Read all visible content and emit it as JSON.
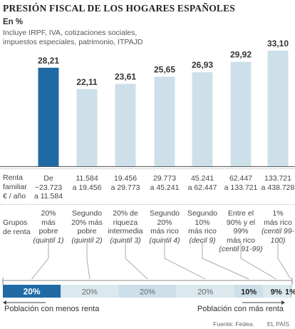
{
  "title": "PRESIÓN FISCAL DE LOS HOGARES ESPAÑOLES",
  "units": "En %",
  "subtitle": "Incluye IRPF, IVA, cotizaciones sociales, impuestos especiales, patrimonio, ITPAJD",
  "colors": {
    "highlight": "#1f6aa5",
    "bar": "#cde0ea",
    "axis": "#555555",
    "text": "#333333"
  },
  "chart_data": {
    "type": "bar",
    "categories": [
      "quintil 1",
      "quintil 2",
      "quintil 3",
      "quintil 4",
      "decil 9",
      "centil 91-99",
      "centil 99-100"
    ],
    "values": [
      28.21,
      22.11,
      23.61,
      25.65,
      26.93,
      29.92,
      33.1
    ],
    "value_labels": [
      "28,21",
      "22,11",
      "23,61",
      "25,65",
      "26,93",
      "29,92",
      "33,10"
    ],
    "ylabel": "En %",
    "ylim": [
      0,
      33.1
    ],
    "grid": false,
    "highlight_index": 0
  },
  "income_row_label": [
    "Renta",
    "familiar",
    "€ / año"
  ],
  "income": [
    [
      "De",
      "−23.723",
      "a 11.584"
    ],
    [
      "11.584",
      "a 19.456"
    ],
    [
      "19.456",
      "a 29.773"
    ],
    [
      "29.773",
      "a 45.241"
    ],
    [
      "45.241",
      "a 62.447"
    ],
    [
      "62.447",
      "a 133.721"
    ],
    [
      "133.721",
      "a 438.728"
    ]
  ],
  "groups_row_label": [
    "Grupos",
    "de renta"
  ],
  "groups": [
    {
      "lines": [
        "20%",
        "más",
        "pobre"
      ],
      "tag": "(quintil 1)"
    },
    {
      "lines": [
        "Segundo",
        "20% más",
        "pobre"
      ],
      "tag": "(quintil 2)"
    },
    {
      "lines": [
        "20% de",
        "riqueza",
        "intermedia"
      ],
      "tag": "(quintil 3)"
    },
    {
      "lines": [
        "Segundo",
        "20%",
        "más rico"
      ],
      "tag": "(quintil 4)"
    },
    {
      "lines": [
        "Segundo",
        "10%",
        "más rico"
      ],
      "tag": "(decil 9)"
    },
    {
      "lines": [
        "Entre el",
        "90% y el 99%",
        "más rico"
      ],
      "tag": "(centil 91-99)"
    },
    {
      "lines": [
        "1%",
        "más rico"
      ],
      "tag": "(centil 99-100)"
    }
  ],
  "distribution": {
    "shares": [
      20,
      20,
      20,
      20,
      10,
      9,
      1
    ],
    "labels": [
      "20%",
      "20%",
      "20%",
      "20%",
      "10%",
      "9%",
      "1%"
    ]
  },
  "left_label": "Población con menos renta",
  "right_label": "Población con más renta",
  "source": "Fuente: Fedea.",
  "publisher": "EL PAÍS"
}
